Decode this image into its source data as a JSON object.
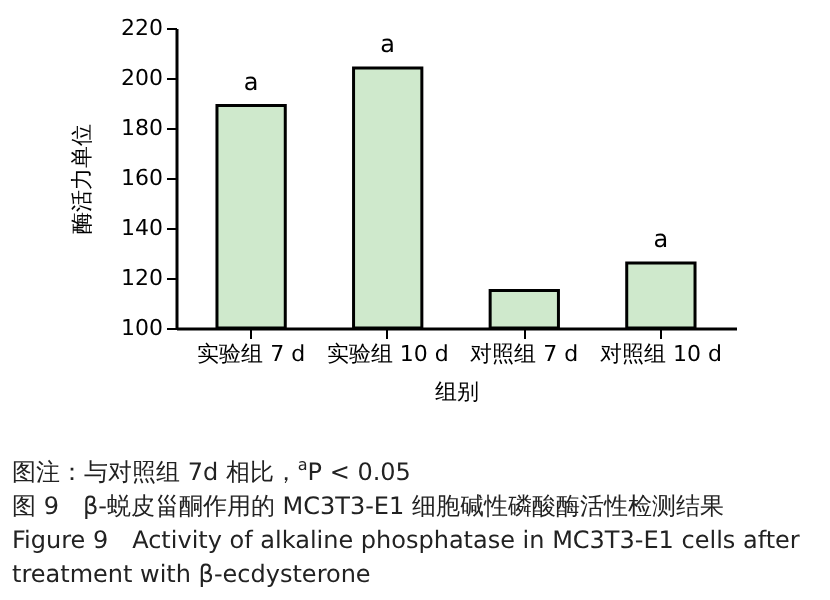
{
  "chart_data": {
    "type": "bar",
    "xlabel": "组别",
    "ylabel": "酶活力单位",
    "categories": [
      "实验组 7 d",
      "实验组 10 d",
      "对照组 7 d",
      "对照组 10 d"
    ],
    "values": [
      189,
      204,
      115,
      126
    ],
    "color": "#cfe9cc",
    "ylim": [
      100,
      220
    ],
    "yticks": [
      100,
      120,
      140,
      160,
      180,
      200,
      220
    ],
    "grid": false,
    "annotations": [
      {
        "text": "a",
        "x": "实验组 7 d",
        "y": 189
      },
      {
        "text": "a",
        "x": "实验组 10 d",
        "y": 204
      },
      {
        "text": "a",
        "x": "对照组 10 d",
        "y": 126
      },
      "图注：与对照组 7d 相比，$^{a}$P < 0.05",
      "图 9　β-蜕皮甾酮作用的 MC3T3-E1 细胞碱性磷酸酶活性检测结果",
      "Figure 9　Activity of alkaline phosphatase in MC3T3-E1 cells after treatment with β-ecdysterone"
    ]
  }
}
